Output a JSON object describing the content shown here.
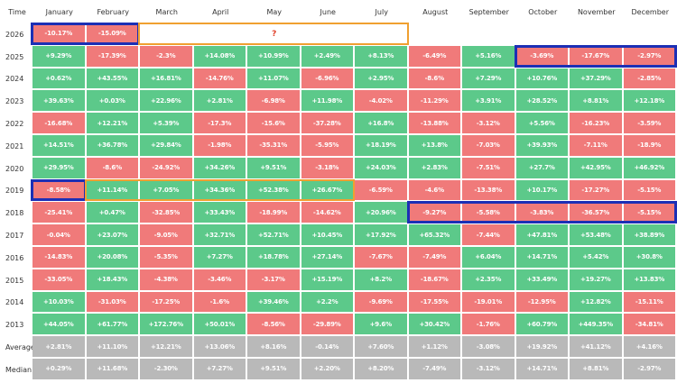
{
  "header": {
    "time_label": "Time",
    "months": [
      "January",
      "February",
      "March",
      "April",
      "May",
      "June",
      "July",
      "August",
      "September",
      "October",
      "November",
      "December"
    ]
  },
  "unknown_marker": "?",
  "rows": [
    {
      "label": "2026",
      "values": [
        "-10.17%",
        "-15.09%",
        "",
        "",
        "",
        "",
        "",
        "",
        "",
        "",
        "",
        ""
      ]
    },
    {
      "label": "2025",
      "values": [
        "+9.29%",
        "-17.39%",
        "-2.3%",
        "+14.08%",
        "+10.99%",
        "+2.49%",
        "+8.13%",
        "-6.49%",
        "+5.16%",
        "-3.69%",
        "-17.67%",
        "-2.97%"
      ]
    },
    {
      "label": "2024",
      "values": [
        "+0.62%",
        "+43.55%",
        "+16.81%",
        "-14.76%",
        "+11.07%",
        "-6.96%",
        "+2.95%",
        "-8.6%",
        "+7.29%",
        "+10.76%",
        "+37.29%",
        "-2.85%"
      ]
    },
    {
      "label": "2023",
      "values": [
        "+39.63%",
        "+0.03%",
        "+22.96%",
        "+2.81%",
        "-6.98%",
        "+11.98%",
        "-4.02%",
        "-11.29%",
        "+3.91%",
        "+28.52%",
        "+8.81%",
        "+12.18%"
      ]
    },
    {
      "label": "2022",
      "values": [
        "-16.68%",
        "+12.21%",
        "+5.39%",
        "-17.3%",
        "-15.6%",
        "-37.28%",
        "+16.8%",
        "-13.88%",
        "-3.12%",
        "+5.56%",
        "-16.23%",
        "-3.59%"
      ]
    },
    {
      "label": "2021",
      "values": [
        "+14.51%",
        "+36.78%",
        "+29.84%",
        "-1.98%",
        "-35.31%",
        "-5.95%",
        "+18.19%",
        "+13.8%",
        "-7.03%",
        "+39.93%",
        "-7.11%",
        "-18.9%"
      ]
    },
    {
      "label": "2020",
      "values": [
        "+29.95%",
        "-8.6%",
        "-24.92%",
        "+34.26%",
        "+9.51%",
        "-3.18%",
        "+24.03%",
        "+2.83%",
        "-7.51%",
        "+27.7%",
        "+42.95%",
        "+46.92%"
      ]
    },
    {
      "label": "2019",
      "values": [
        "-8.58%",
        "+11.14%",
        "+7.05%",
        "+34.36%",
        "+52.38%",
        "+26.67%",
        "-6.59%",
        "-4.6%",
        "-13.38%",
        "+10.17%",
        "-17.27%",
        "-5.15%"
      ]
    },
    {
      "label": "2018",
      "values": [
        "-25.41%",
        "+0.47%",
        "-32.85%",
        "+33.43%",
        "-18.99%",
        "-14.62%",
        "+20.96%",
        "-9.27%",
        "-5.58%",
        "-3.83%",
        "-36.57%",
        "-5.15%"
      ]
    },
    {
      "label": "2017",
      "values": [
        "-0.04%",
        "+23.07%",
        "-9.05%",
        "+32.71%",
        "+52.71%",
        "+10.45%",
        "+17.92%",
        "+65.32%",
        "-7.44%",
        "+47.81%",
        "+53.48%",
        "+38.89%"
      ]
    },
    {
      "label": "2016",
      "values": [
        "-14.83%",
        "+20.08%",
        "-5.35%",
        "+7.27%",
        "+18.78%",
        "+27.14%",
        "-7.67%",
        "-7.49%",
        "+6.04%",
        "+14.71%",
        "+5.42%",
        "+30.8%"
      ]
    },
    {
      "label": "2015",
      "values": [
        "-33.05%",
        "+18.43%",
        "-4.38%",
        "-3.46%",
        "-3.17%",
        "+15.19%",
        "+8.2%",
        "-18.67%",
        "+2.35%",
        "+33.49%",
        "+19.27%",
        "+13.83%"
      ]
    },
    {
      "label": "2014",
      "values": [
        "+10.03%",
        "-31.03%",
        "-17.25%",
        "-1.6%",
        "+39.46%",
        "+2.2%",
        "-9.69%",
        "-17.55%",
        "-19.01%",
        "-12.95%",
        "+12.82%",
        "-15.11%"
      ]
    },
    {
      "label": "2013",
      "values": [
        "+44.05%",
        "+61.77%",
        "+172.76%",
        "+50.01%",
        "-8.56%",
        "-29.89%",
        "+9.6%",
        "+30.42%",
        "-1.76%",
        "+60.79%",
        "+449.35%",
        "-34.81%"
      ]
    },
    {
      "label": "Average",
      "values": [
        "+2.81%",
        "+11.10%",
        "+12.21%",
        "+13.06%",
        "+8.16%",
        "-0.14%",
        "+7.60%",
        "+1.12%",
        "-3.08%",
        "+19.92%",
        "+41.12%",
        "+4.16%"
      ]
    },
    {
      "label": "Median",
      "values": [
        "+0.29%",
        "+11.68%",
        "-2.30%",
        "+7.27%",
        "+9.51%",
        "+2.20%",
        "+8.20%",
        "-7.49%",
        "-3.12%",
        "+14.71%",
        "+8.81%",
        "-2.97%"
      ]
    }
  ],
  "colors": {
    "positive": "#5cc98a",
    "negative": "#f07a7a",
    "summary": "#b9b9b9",
    "highlight_blue": "#1c2fb5",
    "highlight_orange": "#f0a030"
  }
}
